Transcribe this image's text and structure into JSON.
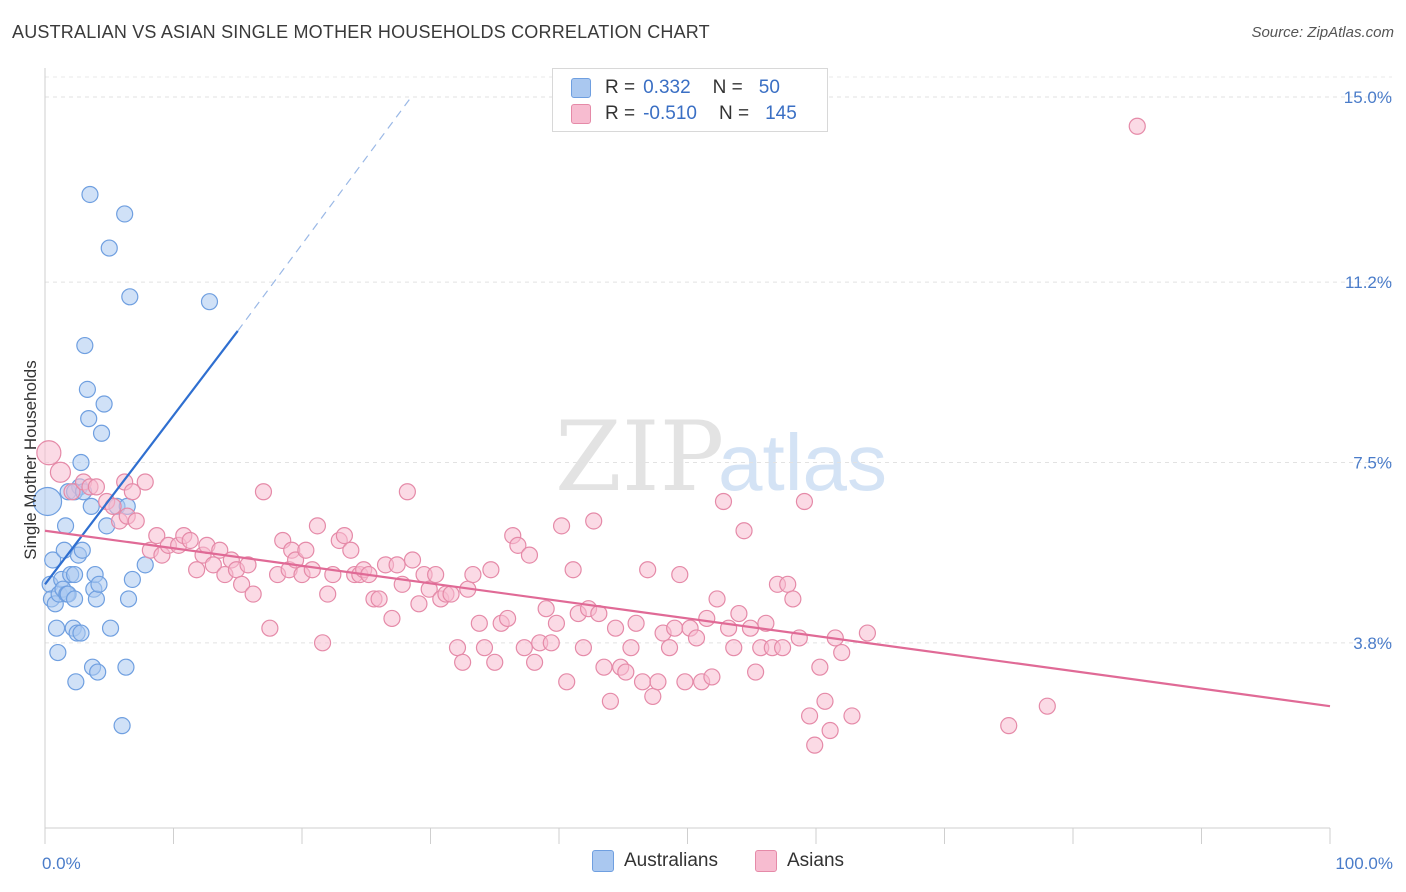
{
  "header": {
    "title": "AUSTRALIAN VS ASIAN SINGLE MOTHER HOUSEHOLDS CORRELATION CHART",
    "source": "Source: ZipAtlas.com"
  },
  "legend": {
    "rows": [
      {
        "r_label": "R =",
        "r_value": "0.332",
        "n_label": "N =",
        "n_value": "50",
        "color": "#aac8f0",
        "border": "#6f9fe0"
      },
      {
        "r_label": "R =",
        "r_value": "-0.510",
        "n_label": "N =",
        "n_value": "145",
        "color": "#f7bcd0",
        "border": "#e58aa8"
      }
    ]
  },
  "bottom_legend": [
    {
      "label": "Australians",
      "color": "#aac8f0",
      "border": "#6f9fe0"
    },
    {
      "label": "Asians",
      "color": "#f7bcd0",
      "border": "#e58aa8"
    }
  ],
  "watermark": {
    "zip": "ZIP",
    "atlas": "atlas"
  },
  "chart_data": {
    "type": "scatter",
    "ylabel": "Single Mother Households",
    "xlabel": "",
    "xlim": [
      0,
      100
    ],
    "ylim": [
      0,
      15.0
    ],
    "y_ticks": [
      {
        "value": 3.8,
        "label": "3.8%"
      },
      {
        "value": 7.5,
        "label": "7.5%"
      },
      {
        "value": 11.2,
        "label": "11.2%"
      },
      {
        "value": 15.0,
        "label": "15.0%"
      }
    ],
    "x_ticks": [
      {
        "value": 0,
        "label": "0.0%"
      },
      {
        "value": 100,
        "label": "100.0%"
      }
    ],
    "colors": {
      "blue_fill": "#aac8f0",
      "blue_stroke": "#6f9fe0",
      "blue_line": "#2f6fd0",
      "pink_fill": "#f7bcd0",
      "pink_stroke": "#e58aa8",
      "pink_line": "#e06a96"
    },
    "series": [
      {
        "name": "Australians",
        "points": [
          [
            0.2,
            6.7
          ],
          [
            0.4,
            5.0
          ],
          [
            0.5,
            4.7
          ],
          [
            0.6,
            5.5
          ],
          [
            0.8,
            4.6
          ],
          [
            0.9,
            4.1
          ],
          [
            1.0,
            3.6
          ],
          [
            1.1,
            4.8
          ],
          [
            1.3,
            5.1
          ],
          [
            1.4,
            4.9
          ],
          [
            1.5,
            5.7
          ],
          [
            1.6,
            6.2
          ],
          [
            1.7,
            4.8
          ],
          [
            1.8,
            4.8
          ],
          [
            2.0,
            5.2
          ],
          [
            1.8,
            6.9
          ],
          [
            2.2,
            4.1
          ],
          [
            2.3,
            5.2
          ],
          [
            2.5,
            4.0
          ],
          [
            2.6,
            5.6
          ],
          [
            2.7,
            7.0
          ],
          [
            2.8,
            7.5
          ],
          [
            2.4,
            3.0
          ],
          [
            2.8,
            4.0
          ],
          [
            2.3,
            4.7
          ],
          [
            2.3,
            6.9
          ],
          [
            2.9,
            5.7
          ],
          [
            3.0,
            6.9
          ],
          [
            3.1,
            9.9
          ],
          [
            3.3,
            9.0
          ],
          [
            3.4,
            8.4
          ],
          [
            3.5,
            13.0
          ],
          [
            3.6,
            6.6
          ],
          [
            3.7,
            3.3
          ],
          [
            3.8,
            4.9
          ],
          [
            3.9,
            5.2
          ],
          [
            4.0,
            4.7
          ],
          [
            4.1,
            3.2
          ],
          [
            4.2,
            5.0
          ],
          [
            4.4,
            8.1
          ],
          [
            4.6,
            8.7
          ],
          [
            4.8,
            6.2
          ],
          [
            5.0,
            11.9
          ],
          [
            5.1,
            4.1
          ],
          [
            5.6,
            6.6
          ],
          [
            6.0,
            2.1
          ],
          [
            6.3,
            3.3
          ],
          [
            6.4,
            6.6
          ],
          [
            6.2,
            12.6
          ],
          [
            6.5,
            4.7
          ],
          [
            6.6,
            10.9
          ],
          [
            6.8,
            5.1
          ],
          [
            7.8,
            5.4
          ],
          [
            12.8,
            10.8
          ]
        ],
        "radius": [
          14,
          8,
          8,
          8,
          8,
          8,
          8,
          8,
          8,
          8,
          8,
          8,
          8,
          8,
          8,
          8,
          8,
          8,
          8,
          8,
          8,
          8,
          8,
          8,
          8,
          8,
          8,
          8,
          8,
          8,
          8,
          8,
          8,
          8,
          8,
          8,
          8,
          8,
          8,
          8,
          8,
          8,
          8,
          8,
          8,
          8,
          8,
          8,
          8,
          8,
          8,
          8,
          8,
          8
        ]
      },
      {
        "name": "Asians",
        "points": [
          [
            0.3,
            7.7
          ],
          [
            1.2,
            7.3
          ],
          [
            2.1,
            6.9
          ],
          [
            3.0,
            7.1
          ],
          [
            3.5,
            7.0
          ],
          [
            4.0,
            7.0
          ],
          [
            4.8,
            6.7
          ],
          [
            5.3,
            6.6
          ],
          [
            6.2,
            7.1
          ],
          [
            5.8,
            6.3
          ],
          [
            6.4,
            6.4
          ],
          [
            7.1,
            6.3
          ],
          [
            6.8,
            6.9
          ],
          [
            7.8,
            7.1
          ],
          [
            8.2,
            5.7
          ],
          [
            8.7,
            6.0
          ],
          [
            9.1,
            5.6
          ],
          [
            9.6,
            5.8
          ],
          [
            10.4,
            5.8
          ],
          [
            10.8,
            6.0
          ],
          [
            11.3,
            5.9
          ],
          [
            11.8,
            5.3
          ],
          [
            12.3,
            5.6
          ],
          [
            12.6,
            5.8
          ],
          [
            13.1,
            5.4
          ],
          [
            13.6,
            5.7
          ],
          [
            14.0,
            5.2
          ],
          [
            14.5,
            5.5
          ],
          [
            14.9,
            5.3
          ],
          [
            15.3,
            5.0
          ],
          [
            15.8,
            5.4
          ],
          [
            16.2,
            4.8
          ],
          [
            17.0,
            6.9
          ],
          [
            17.5,
            4.1
          ],
          [
            18.1,
            5.2
          ],
          [
            18.5,
            5.9
          ],
          [
            19.0,
            5.3
          ],
          [
            19.2,
            5.7
          ],
          [
            19.5,
            5.5
          ],
          [
            20.0,
            5.2
          ],
          [
            20.3,
            5.7
          ],
          [
            20.8,
            5.3
          ],
          [
            21.2,
            6.2
          ],
          [
            21.6,
            3.8
          ],
          [
            22.0,
            4.8
          ],
          [
            22.4,
            5.2
          ],
          [
            22.9,
            5.9
          ],
          [
            23.3,
            6.0
          ],
          [
            23.8,
            5.7
          ],
          [
            24.1,
            5.2
          ],
          [
            24.5,
            5.2
          ],
          [
            24.8,
            5.3
          ],
          [
            25.2,
            5.2
          ],
          [
            25.6,
            4.7
          ],
          [
            26.0,
            4.7
          ],
          [
            26.5,
            5.4
          ],
          [
            27.0,
            4.3
          ],
          [
            27.4,
            5.4
          ],
          [
            27.8,
            5.0
          ],
          [
            28.2,
            6.9
          ],
          [
            28.6,
            5.5
          ],
          [
            29.1,
            4.6
          ],
          [
            29.5,
            5.2
          ],
          [
            29.9,
            4.9
          ],
          [
            30.4,
            5.2
          ],
          [
            30.8,
            4.7
          ],
          [
            31.2,
            4.8
          ],
          [
            31.6,
            4.8
          ],
          [
            32.1,
            3.7
          ],
          [
            32.5,
            3.4
          ],
          [
            32.9,
            4.9
          ],
          [
            33.3,
            5.2
          ],
          [
            33.8,
            4.2
          ],
          [
            34.2,
            3.7
          ],
          [
            34.7,
            5.3
          ],
          [
            35.0,
            3.4
          ],
          [
            35.5,
            4.2
          ],
          [
            36.0,
            4.3
          ],
          [
            36.4,
            6.0
          ],
          [
            36.8,
            5.8
          ],
          [
            37.3,
            3.7
          ],
          [
            37.7,
            5.6
          ],
          [
            38.1,
            3.4
          ],
          [
            38.5,
            3.8
          ],
          [
            39.0,
            4.5
          ],
          [
            39.4,
            3.8
          ],
          [
            39.8,
            4.2
          ],
          [
            40.2,
            6.2
          ],
          [
            40.6,
            3.0
          ],
          [
            41.1,
            5.3
          ],
          [
            41.5,
            4.4
          ],
          [
            41.9,
            3.7
          ],
          [
            42.3,
            4.5
          ],
          [
            42.7,
            6.3
          ],
          [
            43.1,
            4.4
          ],
          [
            43.5,
            3.3
          ],
          [
            44.0,
            2.6
          ],
          [
            44.4,
            4.1
          ],
          [
            44.8,
            3.3
          ],
          [
            45.2,
            3.2
          ],
          [
            45.6,
            3.7
          ],
          [
            46.0,
            4.2
          ],
          [
            46.5,
            3.0
          ],
          [
            46.9,
            5.3
          ],
          [
            47.3,
            2.7
          ],
          [
            47.7,
            3.0
          ],
          [
            48.1,
            4.0
          ],
          [
            48.6,
            3.7
          ],
          [
            49.0,
            4.1
          ],
          [
            49.4,
            5.2
          ],
          [
            49.8,
            3.0
          ],
          [
            50.2,
            4.1
          ],
          [
            50.7,
            3.9
          ],
          [
            51.1,
            3.0
          ],
          [
            51.5,
            4.3
          ],
          [
            51.9,
            3.1
          ],
          [
            52.3,
            4.7
          ],
          [
            52.8,
            6.7
          ],
          [
            53.2,
            4.1
          ],
          [
            53.6,
            3.7
          ],
          [
            54.0,
            4.4
          ],
          [
            54.4,
            6.1
          ],
          [
            54.9,
            4.1
          ],
          [
            55.3,
            3.2
          ],
          [
            55.7,
            3.7
          ],
          [
            56.1,
            4.2
          ],
          [
            56.6,
            3.7
          ],
          [
            57.0,
            5.0
          ],
          [
            57.4,
            3.7
          ],
          [
            57.8,
            5.0
          ],
          [
            58.2,
            4.7
          ],
          [
            58.7,
            3.9
          ],
          [
            59.1,
            6.7
          ],
          [
            59.5,
            2.3
          ],
          [
            59.9,
            1.7
          ],
          [
            60.3,
            3.3
          ],
          [
            60.7,
            2.6
          ],
          [
            61.1,
            2.0
          ],
          [
            61.5,
            3.9
          ],
          [
            62.0,
            3.6
          ],
          [
            62.8,
            2.3
          ],
          [
            64.0,
            4.0
          ],
          [
            75.0,
            2.1
          ],
          [
            78.0,
            2.5
          ],
          [
            85.0,
            14.4
          ]
        ],
        "radius": [
          12,
          10,
          8,
          8,
          8,
          8,
          8,
          8,
          8,
          8,
          8,
          8,
          8,
          8,
          8,
          8,
          8,
          8,
          8,
          8,
          8,
          8,
          8,
          8,
          8,
          8,
          8,
          8,
          8,
          8,
          8,
          8,
          8,
          8,
          8,
          8,
          8,
          8,
          8,
          8,
          8,
          8,
          8,
          8,
          8,
          8,
          8,
          8,
          8,
          8,
          8,
          8,
          8,
          8,
          8,
          8,
          8,
          8,
          8,
          8,
          8,
          8,
          8,
          8,
          8,
          8,
          8,
          8,
          8,
          8,
          8,
          8,
          8,
          8,
          8,
          8,
          8,
          8,
          8,
          8,
          8,
          8,
          8,
          8,
          8,
          8,
          8,
          8,
          8,
          8,
          8,
          8,
          8,
          8,
          8,
          8,
          8,
          8,
          8,
          8,
          8,
          8,
          8,
          8,
          8,
          8,
          8,
          8,
          8,
          8,
          8,
          8,
          8,
          8,
          8,
          8,
          8,
          8,
          8,
          8,
          8,
          8,
          8,
          8,
          8,
          8,
          8,
          8,
          8,
          8,
          8,
          8,
          8,
          8,
          8,
          8,
          8,
          8,
          8,
          8,
          8,
          8,
          8,
          8,
          8
        ]
      }
    ],
    "trendlines": [
      {
        "series": "Australians",
        "solid": [
          [
            0,
            5.0
          ],
          [
            15,
            10.2
          ]
        ],
        "dashed": [
          [
            15,
            10.2
          ],
          [
            28.5,
            15.0
          ]
        ]
      },
      {
        "series": "Asians",
        "solid": [
          [
            0,
            6.1
          ],
          [
            100,
            2.5
          ]
        ]
      }
    ]
  }
}
